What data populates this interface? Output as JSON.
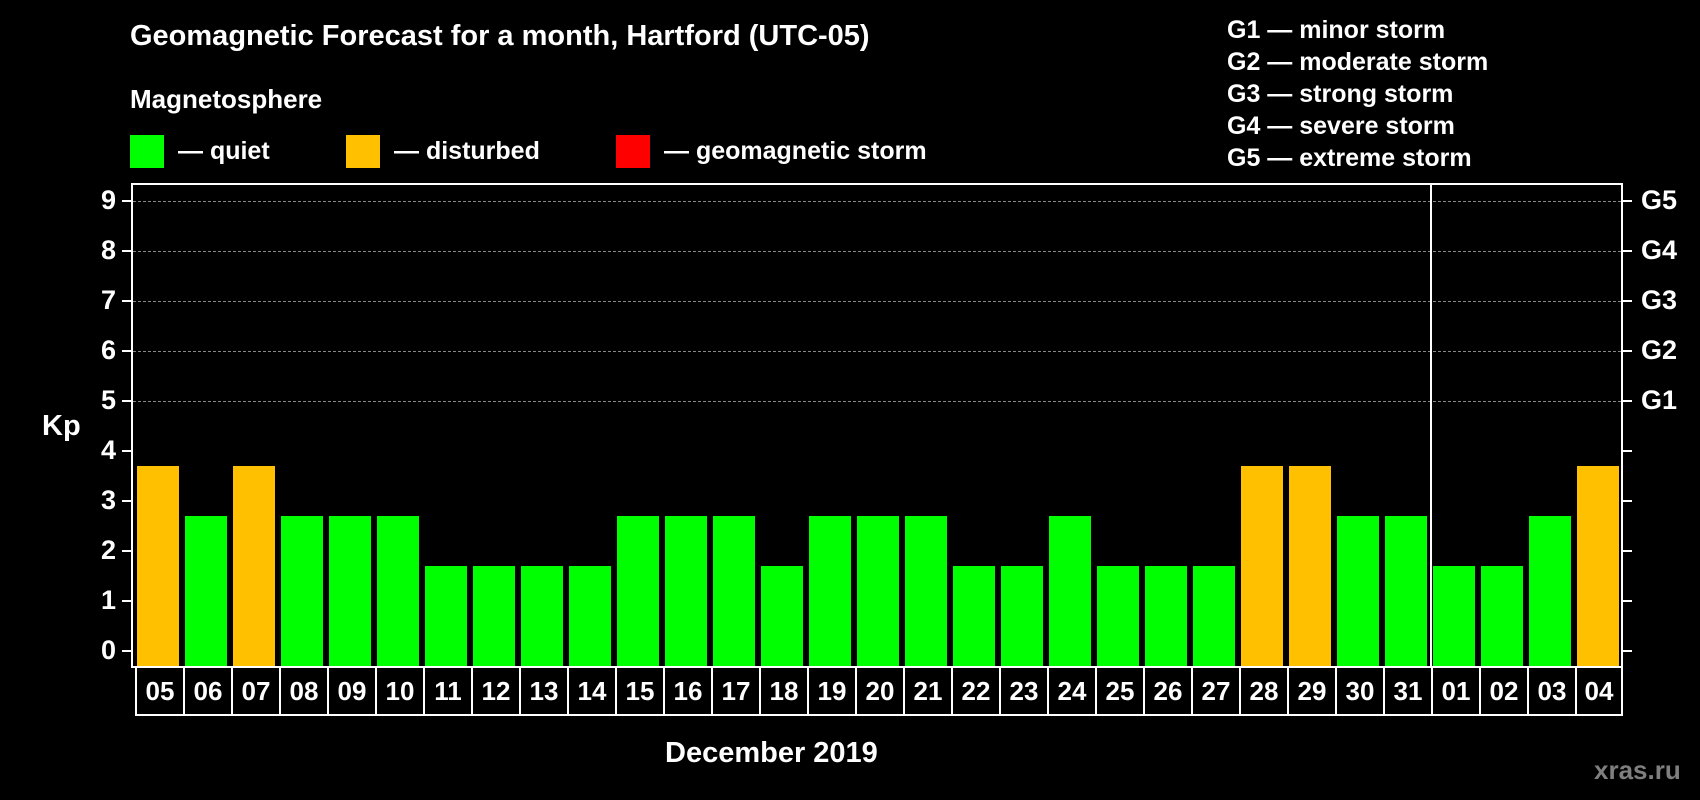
{
  "header": {
    "title": "Geomagnetic Forecast for a month, Hartford (UTC-05)",
    "subtitle": "Magnetosphere"
  },
  "legend": [
    {
      "label": "— quiet",
      "color": "#00ff00"
    },
    {
      "label": "— disturbed",
      "color": "#ffc000"
    },
    {
      "label": "— geomagnetic storm",
      "color": "#ff0000"
    }
  ],
  "storm_levels": [
    "G1 — minor storm",
    "G2 — moderate storm",
    "G3 — strong storm",
    "G4 — severe storm",
    "G5 — extreme storm"
  ],
  "axis": {
    "ylabel": "Kp",
    "yticks": [
      "0",
      "1",
      "2",
      "3",
      "4",
      "5",
      "6",
      "7",
      "8",
      "9"
    ],
    "right_labels": {
      "5": "G1",
      "6": "G2",
      "7": "G3",
      "8": "G4",
      "9": "G5"
    },
    "xlabel": "December 2019"
  },
  "watermark": "xras.ru",
  "chart_data": {
    "type": "bar",
    "title": "Geomagnetic Forecast for a month, Hartford (UTC-05)",
    "xlabel": "December 2019",
    "ylabel": "Kp",
    "ylim": [
      0,
      9
    ],
    "grid": "dashed horizontal lines at Kp 5–9",
    "legend_position": "top",
    "categories": [
      "05",
      "06",
      "07",
      "08",
      "09",
      "10",
      "11",
      "12",
      "13",
      "14",
      "15",
      "16",
      "17",
      "18",
      "19",
      "20",
      "21",
      "22",
      "23",
      "24",
      "25",
      "26",
      "27",
      "28",
      "29",
      "30",
      "31",
      "01",
      "02",
      "03",
      "04"
    ],
    "values": [
      4,
      3,
      4,
      3,
      3,
      3,
      2,
      2,
      2,
      2,
      3,
      3,
      3,
      2,
      3,
      3,
      3,
      2,
      2,
      3,
      2,
      2,
      2,
      4,
      4,
      3,
      3,
      2,
      2,
      3,
      4
    ],
    "status": [
      "disturbed",
      "quiet",
      "disturbed",
      "quiet",
      "quiet",
      "quiet",
      "quiet",
      "quiet",
      "quiet",
      "quiet",
      "quiet",
      "quiet",
      "quiet",
      "quiet",
      "quiet",
      "quiet",
      "quiet",
      "quiet",
      "quiet",
      "quiet",
      "quiet",
      "quiet",
      "quiet",
      "disturbed",
      "disturbed",
      "quiet",
      "quiet",
      "quiet",
      "quiet",
      "quiet",
      "disturbed"
    ],
    "month_separator_after": "31",
    "colors": {
      "quiet": "#00ff00",
      "disturbed": "#ffc000",
      "storm": "#ff0000"
    }
  }
}
